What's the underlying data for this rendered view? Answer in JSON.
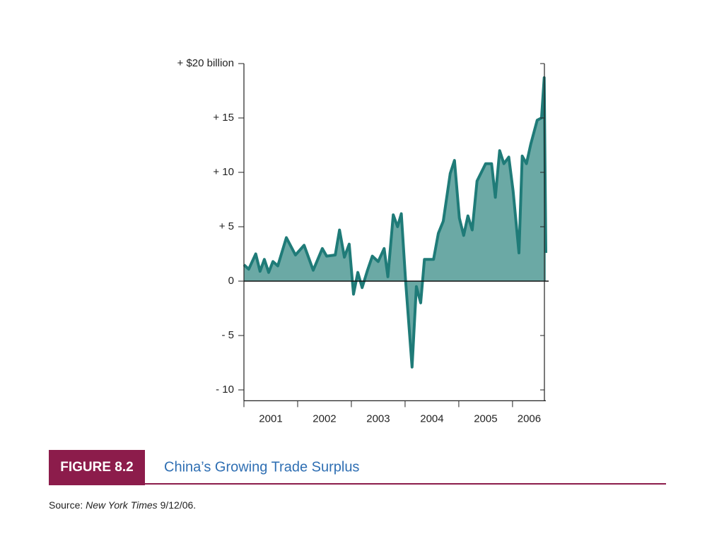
{
  "chart_data": {
    "type": "area",
    "x": [
      2001.0,
      2001.09,
      2001.22,
      2001.3,
      2001.38,
      2001.46,
      2001.54,
      2001.63,
      2001.79,
      2001.96,
      2002.12,
      2002.29,
      2002.46,
      2002.54,
      2002.7,
      2002.78,
      2002.87,
      2002.96,
      2003.04,
      2003.12,
      2003.2,
      2003.3,
      2003.39,
      2003.5,
      2003.61,
      2003.68,
      2003.78,
      2003.86,
      2003.93,
      2004.01,
      2004.13,
      2004.21,
      2004.29,
      2004.36,
      2004.53,
      2004.62,
      2004.71,
      2004.84,
      2004.92,
      2005.01,
      2005.09,
      2005.17,
      2005.25,
      2005.34,
      2005.5,
      2005.61,
      2005.68,
      2005.76,
      2005.84,
      2005.93,
      2006.01,
      2006.12,
      2006.18,
      2006.26,
      2006.34,
      2006.46,
      2006.54,
      2006.59,
      2006.62
    ],
    "values": [
      1.5,
      1.1,
      2.5,
      0.9,
      2.0,
      0.8,
      1.8,
      1.4,
      4.0,
      2.4,
      3.3,
      1.0,
      3.0,
      2.3,
      2.4,
      4.7,
      2.2,
      3.4,
      -1.2,
      0.8,
      -0.6,
      1.0,
      2.3,
      1.8,
      3.0,
      0.4,
      6.1,
      5.0,
      6.2,
      0,
      -7.9,
      -0.5,
      -2.0,
      2.0,
      2.0,
      4.4,
      5.5,
      9.9,
      11.1,
      5.8,
      4.2,
      6.0,
      4.7,
      9.2,
      10.8,
      10.8,
      7.7,
      12.0,
      10.8,
      11.4,
      8.3,
      2.6,
      11.5,
      10.8,
      12.6,
      14.8,
      15.0,
      18.7,
      2.6
    ],
    "color": "#1f7b78",
    "fill_color": "#6ba9a5",
    "xlim": [
      2001,
      2006.62
    ],
    "xticks": [
      2001,
      2002,
      2003,
      2004,
      2005,
      2006
    ],
    "categories": [
      "2001",
      "2002",
      "2003",
      "2004",
      "2005",
      "2006"
    ],
    "ylim": [
      -11,
      20
    ],
    "yticks": [
      {
        "value": 20,
        "label": "+ $20 billion"
      },
      {
        "value": 15,
        "label": "+ 15"
      },
      {
        "value": 10,
        "label": "+ 10"
      },
      {
        "value": 5,
        "label": "+ 5"
      },
      0,
      {
        "value": -5,
        "label": "- 5"
      },
      {
        "value": -10,
        "label": "- 10"
      }
    ],
    "figure_label": "FIGURE 8.2",
    "title": "China’s Growing Trade Surplus",
    "source_prefix": "Source:",
    "source_publication": "New York Times",
    "source_date": "9/12/06."
  }
}
